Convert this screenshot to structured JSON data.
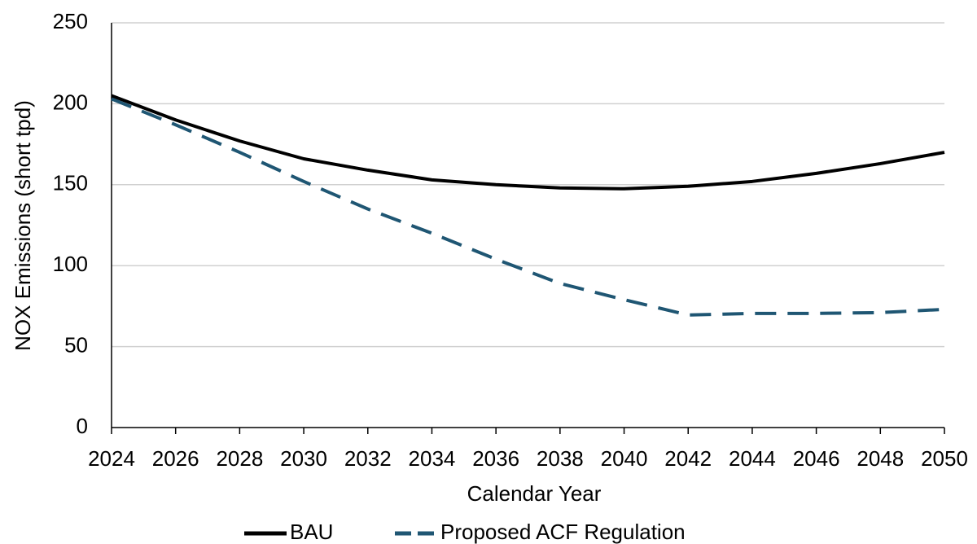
{
  "chart_data": {
    "type": "line",
    "x_label": "Calendar Year",
    "y_label": "NOX Emissions (short tpd)",
    "x": [
      2024,
      2026,
      2028,
      2030,
      2032,
      2034,
      2036,
      2038,
      2040,
      2042,
      2044,
      2046,
      2048,
      2050
    ],
    "series": [
      {
        "name": "BAU",
        "color": "#000000",
        "dash": false,
        "values": [
          205,
          190,
          177,
          166,
          159,
          153,
          150,
          148,
          147.5,
          149,
          152,
          157,
          163,
          170
        ]
      },
      {
        "name": "Proposed ACF Regulation",
        "color": "#1f5673",
        "dash": true,
        "values": [
          203,
          187,
          170,
          152,
          135,
          120,
          104,
          89,
          79,
          69.5,
          70.5,
          70.5,
          71,
          73
        ]
      }
    ],
    "xlim": [
      2024,
      2050
    ],
    "xticks": [
      2024,
      2026,
      2028,
      2030,
      2032,
      2034,
      2036,
      2038,
      2040,
      2042,
      2044,
      2046,
      2048,
      2050
    ],
    "ylim": [
      0,
      250
    ],
    "yticks": [
      0,
      50,
      100,
      150,
      200,
      250
    ],
    "grid": true,
    "legend": "bottom"
  }
}
